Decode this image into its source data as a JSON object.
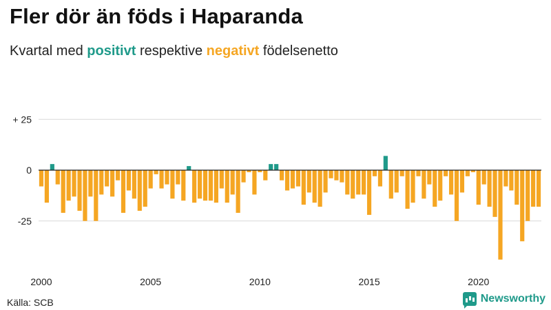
{
  "header": {
    "title": "Fler dör än föds i Haparanda",
    "subtitle_part1": "Kvartal med ",
    "subtitle_positive": "positivt",
    "subtitle_part2": " respektive ",
    "subtitle_negative": "negativt",
    "subtitle_part3": " födelsenetto"
  },
  "footer": {
    "source": "Källa: SCB",
    "brand": "Newsworthy"
  },
  "colors": {
    "positive": "#1f9a8a",
    "negative": "#f5a623",
    "grid": "#d9d9d9",
    "zero_line": "#222222"
  },
  "chart_data": {
    "type": "bar",
    "title": "Fler dör än föds i Haparanda",
    "subtitle": "Kvartal med positivt respektive negativt födelsenetto",
    "x_start": "2000 Q1",
    "x_tick_labels": [
      "2000",
      "2005",
      "2010",
      "2015",
      "2020"
    ],
    "y_tick_labels": [
      "+ 25",
      "0",
      "-25"
    ],
    "y_ticks": [
      25,
      0,
      -25
    ],
    "ylim": [
      -45,
      25
    ],
    "grid": true,
    "values": [
      -8,
      -16,
      3,
      -7,
      -21,
      -15,
      -13,
      -20,
      -25,
      -13,
      -25,
      -12,
      -8,
      -13,
      -5,
      -21,
      -10,
      -14,
      -20,
      -18,
      -9,
      -2,
      -9,
      -7,
      -14,
      -7,
      -15,
      2,
      -16,
      -14,
      -15,
      -15,
      -16,
      -9,
      -16,
      -12,
      -21,
      -6,
      -1,
      -12,
      -1,
      -5,
      3,
      3,
      -5,
      -10,
      -9,
      -8,
      -17,
      -11,
      -16,
      -18,
      -11,
      -4,
      -5,
      -6,
      -12,
      -14,
      -12,
      -12,
      -22,
      -3,
      -8,
      7,
      -14,
      -11,
      -3,
      -19,
      -16,
      -3,
      -14,
      -7,
      -18,
      -15,
      -3,
      -12,
      -25,
      -11,
      -3,
      -1,
      -17,
      -7,
      -18,
      -23,
      -44,
      -8,
      -10,
      -17,
      -35,
      -25,
      -18,
      -18
    ]
  }
}
